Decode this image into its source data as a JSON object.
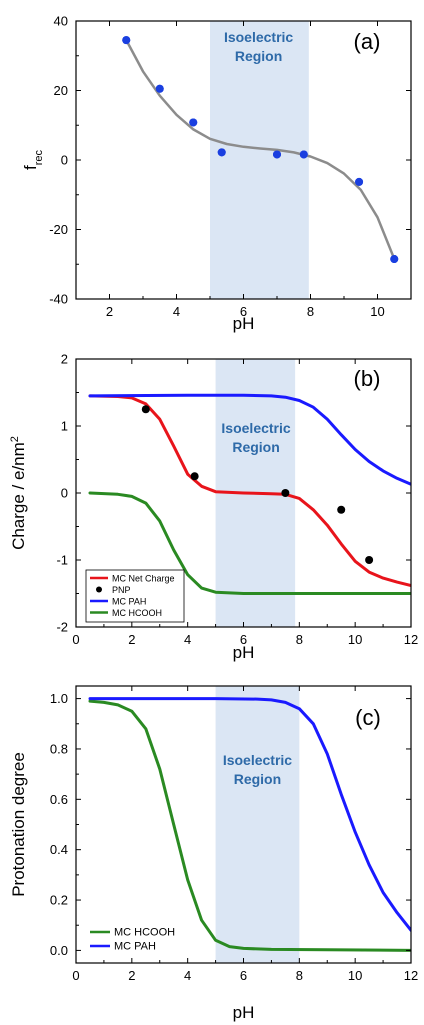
{
  "chart_data": [
    {
      "type": "scatter",
      "panel_label": "(a)",
      "region_label_line1": "Isoelectric",
      "region_label_line2": "Region",
      "shaded_region_x": [
        5,
        7.95
      ],
      "region_color": "#dbe6f4",
      "xlabel": "pH",
      "ylabel": "f",
      "ylabel_sub": "rec",
      "xlim": [
        1,
        11
      ],
      "ylim": [
        -40,
        40
      ],
      "xticks": [
        2,
        4,
        6,
        8,
        10
      ],
      "yticks": [
        -40,
        -20,
        0,
        20,
        40
      ],
      "grid": false,
      "series": [
        {
          "kind": "points",
          "color": "#1a3fe0",
          "points": [
            [
              2.5,
              34.5
            ],
            [
              3.5,
              20.5
            ],
            [
              4.5,
              10.8
            ],
            [
              5.35,
              2.2
            ],
            [
              7.0,
              1.6
            ],
            [
              7.8,
              1.6
            ],
            [
              9.45,
              -6.3
            ],
            [
              10.5,
              -28.5
            ]
          ]
        },
        {
          "kind": "line",
          "color": "#8c8c8c",
          "points": [
            [
              2.5,
              34.5
            ],
            [
              3.0,
              25.5
            ],
            [
              3.5,
              18.5
            ],
            [
              4.0,
              13.0
            ],
            [
              4.5,
              8.8
            ],
            [
              5.0,
              6.1
            ],
            [
              5.5,
              4.6
            ],
            [
              6.0,
              3.8
            ],
            [
              6.5,
              3.3
            ],
            [
              7.0,
              2.9
            ],
            [
              7.5,
              2.2
            ],
            [
              8.0,
              1.0
            ],
            [
              8.5,
              -0.9
            ],
            [
              9.0,
              -3.9
            ],
            [
              9.5,
              -8.6
            ],
            [
              10.0,
              -16.5
            ],
            [
              10.5,
              -28.5
            ]
          ]
        }
      ]
    },
    {
      "type": "line",
      "panel_label": "(b)",
      "region_label_line1": "Isoelectric",
      "region_label_line2": "Region",
      "shaded_region_x": [
        5,
        7.85
      ],
      "region_color": "#dbe6f4",
      "xlabel": "pH",
      "ylabel": "Charge / e/nm",
      "ylabel_sup": "2",
      "xlim": [
        0,
        12
      ],
      "ylim": [
        -2,
        2
      ],
      "xticks": [
        0,
        2,
        4,
        6,
        8,
        10,
        12
      ],
      "yticks": [
        -2,
        -1,
        0,
        1,
        2
      ],
      "grid": false,
      "legend_position": "bottom-left",
      "series": [
        {
          "name": "MC Net Charge",
          "kind": "line",
          "color": "#e8141b",
          "points": [
            [
              0.5,
              1.45
            ],
            [
              1.5,
              1.44
            ],
            [
              2.0,
              1.42
            ],
            [
              2.5,
              1.33
            ],
            [
              3.0,
              1.1
            ],
            [
              3.5,
              0.7
            ],
            [
              4.0,
              0.28
            ],
            [
              4.5,
              0.1
            ],
            [
              5.0,
              0.02
            ],
            [
              6.0,
              0.0
            ],
            [
              7.0,
              -0.01
            ],
            [
              7.5,
              -0.02
            ],
            [
              8.0,
              -0.08
            ],
            [
              8.5,
              -0.25
            ],
            [
              9.0,
              -0.48
            ],
            [
              9.5,
              -0.76
            ],
            [
              10.0,
              -1.02
            ],
            [
              10.5,
              -1.18
            ],
            [
              11.0,
              -1.27
            ],
            [
              11.5,
              -1.33
            ],
            [
              12.0,
              -1.38
            ]
          ]
        },
        {
          "name": "PNP",
          "kind": "points",
          "color": "#000000",
          "points": [
            [
              2.5,
              1.25
            ],
            [
              4.25,
              0.25
            ],
            [
              7.5,
              0.0
            ],
            [
              9.5,
              -0.25
            ],
            [
              10.5,
              -1.0
            ]
          ]
        },
        {
          "name": "MC PAH",
          "kind": "line",
          "color": "#1a1aff",
          "points": [
            [
              0.5,
              1.45
            ],
            [
              4.0,
              1.46
            ],
            [
              6.0,
              1.46
            ],
            [
              7.0,
              1.45
            ],
            [
              7.5,
              1.43
            ],
            [
              8.0,
              1.38
            ],
            [
              8.5,
              1.28
            ],
            [
              9.0,
              1.1
            ],
            [
              9.5,
              0.87
            ],
            [
              10.0,
              0.65
            ],
            [
              10.5,
              0.47
            ],
            [
              11.0,
              0.33
            ],
            [
              11.5,
              0.22
            ],
            [
              12.0,
              0.13
            ]
          ]
        },
        {
          "name": "MC HCOOH",
          "kind": "line",
          "color": "#2a8a22",
          "points": [
            [
              0.5,
              0.0
            ],
            [
              1.5,
              -0.02
            ],
            [
              2.0,
              -0.05
            ],
            [
              2.5,
              -0.15
            ],
            [
              3.0,
              -0.42
            ],
            [
              3.5,
              -0.85
            ],
            [
              4.0,
              -1.22
            ],
            [
              4.5,
              -1.42
            ],
            [
              5.0,
              -1.48
            ],
            [
              6.0,
              -1.5
            ],
            [
              8.0,
              -1.5
            ],
            [
              12.0,
              -1.5
            ]
          ]
        }
      ]
    },
    {
      "type": "line",
      "panel_label": "(c)",
      "region_label_line1": "Isoelectric",
      "region_label_line2": "Region",
      "shaded_region_x": [
        5,
        8
      ],
      "region_color": "#dbe6f4",
      "xlabel": "pH",
      "ylabel": "Protonation degree",
      "xlim": [
        0,
        12
      ],
      "ylim": [
        -0.05,
        1.05
      ],
      "xticks": [
        0,
        2,
        4,
        6,
        8,
        10,
        12
      ],
      "yticks": [
        0.0,
        0.2,
        0.4,
        0.6,
        0.8,
        1.0
      ],
      "ytick_labels": [
        "0.0",
        "0.2",
        "0.4",
        "0.6",
        "0.8",
        "1.0"
      ],
      "grid": false,
      "legend_position": "bottom-left",
      "series": [
        {
          "name": "MC HCOOH",
          "kind": "line",
          "color": "#2a8a22",
          "points": [
            [
              0.5,
              0.99
            ],
            [
              1.0,
              0.985
            ],
            [
              1.5,
              0.975
            ],
            [
              2.0,
              0.95
            ],
            [
              2.5,
              0.88
            ],
            [
              3.0,
              0.72
            ],
            [
              3.5,
              0.5
            ],
            [
              4.0,
              0.28
            ],
            [
              4.5,
              0.12
            ],
            [
              5.0,
              0.04
            ],
            [
              5.5,
              0.015
            ],
            [
              6.0,
              0.008
            ],
            [
              7.0,
              0.004
            ],
            [
              9.0,
              0.003
            ],
            [
              12.0,
              0.0
            ]
          ]
        },
        {
          "name": "MC PAH",
          "kind": "line",
          "color": "#1a1aff",
          "points": [
            [
              0.5,
              1.0
            ],
            [
              5.0,
              1.0
            ],
            [
              6.5,
              0.998
            ],
            [
              7.0,
              0.995
            ],
            [
              7.5,
              0.985
            ],
            [
              8.0,
              0.96
            ],
            [
              8.5,
              0.9
            ],
            [
              9.0,
              0.78
            ],
            [
              9.5,
              0.62
            ],
            [
              10.0,
              0.47
            ],
            [
              10.5,
              0.34
            ],
            [
              11.0,
              0.23
            ],
            [
              11.5,
              0.15
            ],
            [
              12.0,
              0.08
            ]
          ]
        }
      ]
    }
  ]
}
